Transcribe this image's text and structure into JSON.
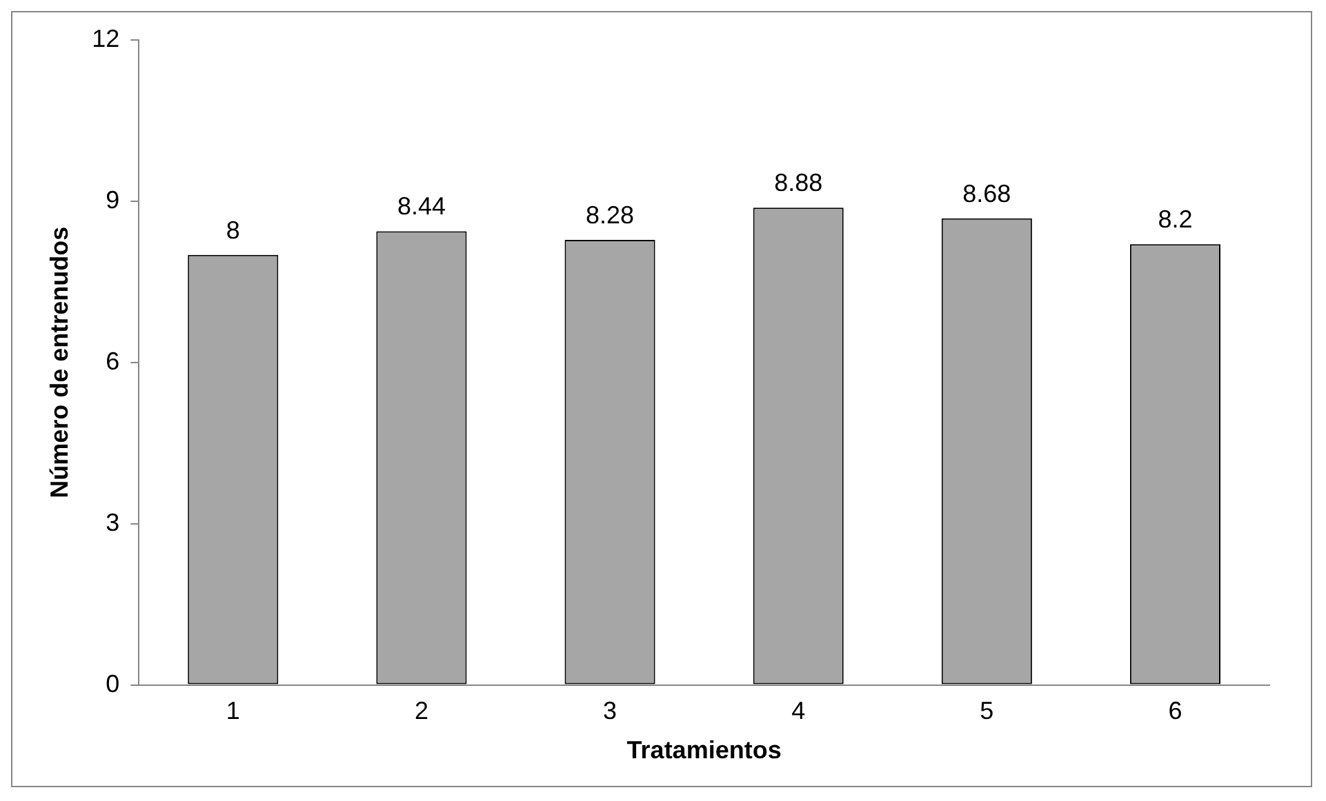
{
  "chart_data": {
    "type": "bar",
    "xlabel": "Tratamientos",
    "ylabel": "Número de entrenudos",
    "categories": [
      "1",
      "2",
      "3",
      "4",
      "5",
      "6"
    ],
    "values": [
      8,
      8.44,
      8.28,
      8.88,
      8.68,
      8.2
    ],
    "color": "#a6a6a6",
    "ylim": [
      0,
      12
    ],
    "yticks": [
      0,
      3,
      6,
      9,
      12
    ],
    "grid": false,
    "legend": false,
    "data_labels": true
  }
}
